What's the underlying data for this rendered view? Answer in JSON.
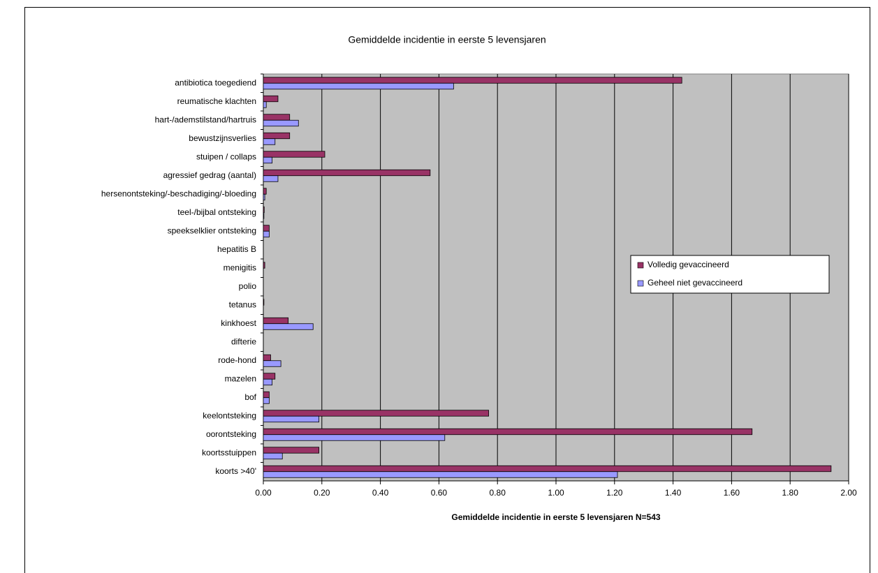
{
  "chart_data": {
    "type": "bar",
    "orientation": "horizontal",
    "title": "Gemiddelde incidentie in eerste 5 levensjaren",
    "x_label": "Gemiddelde incidentie in eerste 5 levensjaren N=543",
    "categories": [
      "antibiotica toegediend",
      "reumatische klachten",
      "hart-/ademstilstand/hartruis",
      "bewustzijnsverlies",
      "stuipen / collaps",
      "agressief gedrag (aantal)",
      "hersenontsteking/-beschadiging/-bloeding",
      "teel-/bijbal ontsteking",
      "speekselklier ontsteking",
      "hepatitis B",
      "menigitis",
      "polio",
      "tetanus",
      "kinkhoest",
      "difterie",
      "rode-hond",
      "mazelen",
      "bof",
      "keelontsteking",
      "oorontsteking",
      "koortsstuippen",
      "koorts >40'"
    ],
    "series": [
      {
        "name": "Volledig gevaccineerd",
        "color": "#993366",
        "values": [
          1.43,
          0.05,
          0.09,
          0.09,
          0.21,
          0.57,
          0.01,
          0.003,
          0.02,
          0,
          0.005,
          0,
          0.002,
          0.085,
          0,
          0.025,
          0.04,
          0.02,
          0.77,
          1.67,
          0.19,
          1.94
        ]
      },
      {
        "name": "Geheel niet gevaccineerd",
        "color": "#9999ff",
        "values": [
          0.65,
          0.01,
          0.12,
          0.04,
          0.03,
          0.05,
          0.005,
          0.002,
          0.02,
          0,
          0,
          0,
          0,
          0.17,
          0,
          0.06,
          0.03,
          0.02,
          0.19,
          0.62,
          0.065,
          1.21
        ]
      }
    ],
    "xlim": [
      0,
      2
    ],
    "xticks": [
      {
        "value": 0,
        "label": "0.00"
      },
      {
        "value": 0.2,
        "label": "0.20"
      },
      {
        "value": 0.4,
        "label": "0.40"
      },
      {
        "value": 0.6,
        "label": "0.60"
      },
      {
        "value": 0.8,
        "label": "0.80"
      },
      {
        "value": 1,
        "label": "1.00"
      },
      {
        "value": 1.2,
        "label": "1.20"
      },
      {
        "value": 1.4,
        "label": "1.40"
      },
      {
        "value": 1.6,
        "label": "1.60"
      },
      {
        "value": 1.8,
        "label": "1.80"
      },
      {
        "value": 2,
        "label": "2.00"
      }
    ],
    "grid": true,
    "legend": "right",
    "plot_background": "#c0c0c0"
  }
}
